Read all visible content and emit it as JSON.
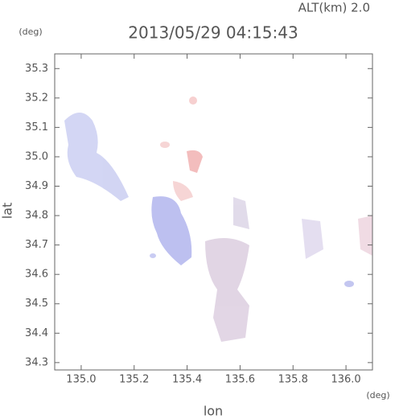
{
  "chart_data": {
    "type": "map",
    "title": "2013/05/29 04:15:43",
    "subtitle": "ALT(km) 2.0",
    "x_label": "lon",
    "x_unit": "(deg)",
    "y_label": "lat",
    "y_unit": "(deg)",
    "xlim": [
      134.9,
      136.1
    ],
    "xticks": [
      {
        "value": 135,
        "label": "135.0"
      },
      135.2,
      135.4,
      135.6,
      135.8,
      {
        "value": 136,
        "label": "136.0"
      }
    ],
    "ylim": [
      34.275,
      35.35
    ],
    "yticks": [
      34.3,
      34.4,
      34.5,
      34.6,
      34.7,
      34.8,
      34.9,
      {
        "value": 35,
        "label": "35.0"
      },
      35.1,
      35.2,
      35.3
    ]
  }
}
